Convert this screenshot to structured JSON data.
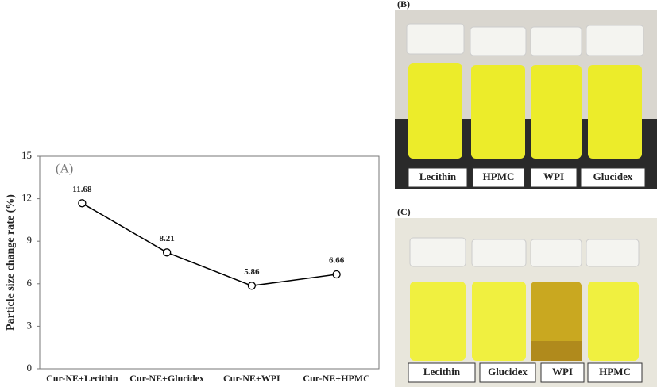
{
  "chart_data": {
    "type": "line",
    "annotation": "(A)",
    "y_label": "Particle size change rate (%)",
    "categories": [
      "Cur-NE+Lecithin",
      "Cur-NE+Glucidex",
      "Cur-NE+WPI",
      "Cur-NE+HPMC"
    ],
    "values": [
      11.68,
      8.21,
      5.86,
      6.66
    ],
    "color": "#000000",
    "ylim": [
      0,
      15
    ],
    "yticks": [
      0,
      3,
      6,
      9,
      12,
      15
    ],
    "grid": false
  },
  "panels": [
    {
      "label": "(B)",
      "samples": [
        "Lecithin",
        "HPMC",
        "WPI",
        "Glucidex"
      ]
    },
    {
      "label": "(C)",
      "samples": [
        "Lecithin",
        "Glucidex",
        "WPI",
        "HPMC"
      ]
    }
  ]
}
